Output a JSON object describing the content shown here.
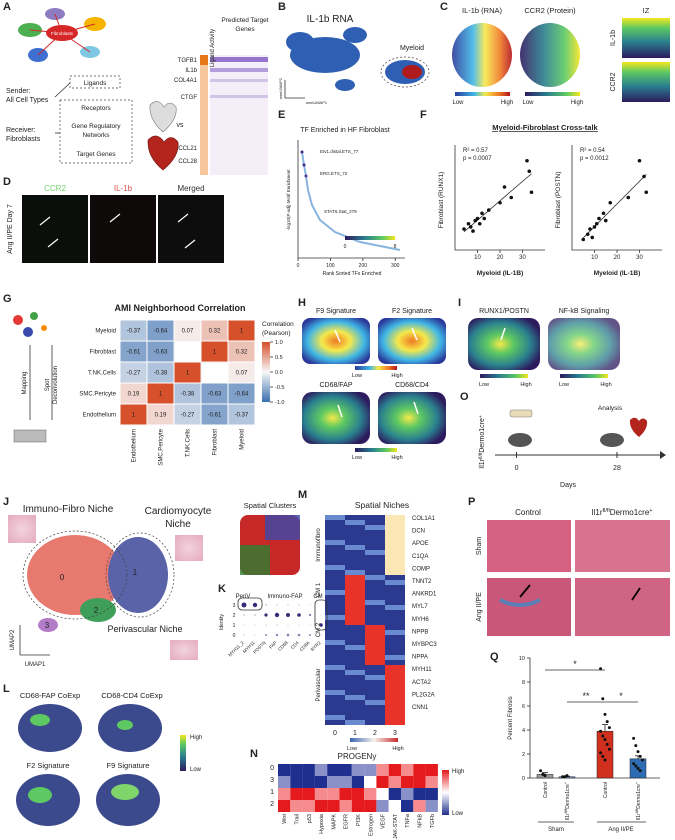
{
  "panels": {
    "a": {
      "letter": "A",
      "center_label": "Fibroblasts",
      "sender": [
        "Sender:",
        "All Cell Types"
      ],
      "receiver": [
        "Receiver:",
        "Fibroblasts"
      ],
      "flow": [
        "Ligands",
        "Receptors",
        "Gene Regulatory",
        "Networks",
        "Target Genes"
      ],
      "vs": "vs",
      "ligand_activity": "Ligand Activity",
      "predicted_target_genes": [
        "Predicted Target",
        "Genes"
      ],
      "genes": [
        "TGFB1",
        "IL1b",
        "COL4A1",
        "CTGF",
        "CCL21",
        "CCL28"
      ]
    },
    "b": {
      "letter": "B",
      "title": "IL-1b RNA",
      "myeloid": "Myeloid",
      "x_label": "wnnUMAP1",
      "y_label": "wnnUMAP2"
    },
    "c": {
      "letter": "C",
      "titles": [
        "IL-1b (RNA)",
        "CCR2 (Protein)",
        "IZ"
      ],
      "row_labels": [
        "IL-1b",
        "CCR2"
      ],
      "scale": [
        "Low",
        "High",
        "Low",
        "High"
      ]
    },
    "d": {
      "letter": "D",
      "titles": [
        "CCR2",
        "IL-1b",
        "Merged"
      ],
      "row_label": "Ang II/PE Day 7"
    },
    "e": {
      "letter": "E",
      "title": "TF Enriched in HF Fibroblast",
      "y_label": "-log10(P-adj) Motif Enrichment",
      "x_label": "Rank Sorted TFs Enriched",
      "annotations": [
        "Etv1.distal.ETS_77",
        "ERG.ETS_72",
        "STAT6.Stat_279"
      ],
      "xlim": [
        0,
        330
      ],
      "xticks": [
        0,
        100,
        200,
        300
      ],
      "colorbar_ticks": [
        0,
        8
      ]
    },
    "f": {
      "letter": "F",
      "title": "Myeloid-Fibroblast Cross-talk",
      "plots": [
        {
          "stats": [
            "R² = 0.57",
            "p = 0.0007"
          ],
          "y_label": "Fibroblast (RUNX1)",
          "x_label": "Myeloid (IL-1B)",
          "xlim": [
            0,
            40
          ],
          "xticks": [
            10,
            20,
            30
          ],
          "ylim": [
            0,
            1
          ],
          "x": [
            4,
            6,
            7,
            8,
            9,
            10,
            11,
            12,
            13,
            15,
            20,
            22,
            25,
            32,
            33,
            34
          ],
          "y": [
            0.2,
            0.25,
            0.22,
            0.18,
            0.28,
            0.3,
            0.25,
            0.35,
            0.3,
            0.38,
            0.45,
            0.6,
            0.5,
            0.85,
            0.75,
            0.55
          ]
        },
        {
          "stats": [
            "R² = 0.54",
            "p = 0.0012"
          ],
          "y_label": "Fibroblast (POSTN)",
          "x_label": "Myeloid (IL-1B)",
          "xlim": [
            0,
            40
          ],
          "xticks": [
            10,
            20,
            30
          ],
          "ylim": [
            0,
            1
          ],
          "x": [
            5,
            7,
            8,
            9,
            10,
            11,
            12,
            14,
            15,
            17,
            25,
            30,
            32,
            33
          ],
          "y": [
            0.1,
            0.15,
            0.2,
            0.12,
            0.22,
            0.25,
            0.3,
            0.35,
            0.28,
            0.45,
            0.5,
            0.85,
            0.7,
            0.55
          ]
        }
      ]
    },
    "g": {
      "letter": "G",
      "title": "AMI Neighborhood Correlation",
      "rows": [
        "Myeloid",
        "Fibroblast",
        "T.NK.Cells",
        "SMC.Pericyte",
        "Endothelium"
      ],
      "columns": [
        "Endothelium",
        "SMC.Pericyte",
        "T.NK.Cells",
        "Fibroblast",
        "Myeloid"
      ],
      "values": [
        [
          -0.37,
          -0.64,
          0.07,
          0.32,
          1
        ],
        [
          -0.61,
          -0.63,
          null,
          1,
          0.32
        ],
        [
          -0.27,
          -0.38,
          1,
          null,
          0.07
        ],
        [
          0.19,
          1,
          -0.38,
          -0.63,
          -0.64
        ],
        [
          1,
          0.19,
          -0.27,
          -0.61,
          -0.37
        ]
      ],
      "colorbar_title": [
        "Correlation",
        "(Pearson)"
      ],
      "colorbar_ticks": [
        {
          "value": 1,
          "label": "1.0"
        },
        {
          "value": 0.5,
          "label": "0.5"
        },
        {
          "value": 0,
          "label": "0.0"
        },
        {
          "value": -0.5,
          "label": "-0.5"
        },
        {
          "value": -1,
          "label": "-1.0"
        }
      ],
      "side_labels": [
        "Mapping",
        "Spot",
        "Deconvolution"
      ]
    },
    "h": {
      "letter": "H",
      "titles": [
        "F9 Signature",
        "F2 Signature",
        "CD68/FAP",
        "CD68/CD4"
      ],
      "scale": [
        "Low",
        "High",
        "Low",
        "High"
      ]
    },
    "i": {
      "letter": "I",
      "titles": [
        "RUNX1/POSTN",
        "NF-kB Signaling"
      ],
      "scale": [
        "Low",
        "High",
        "Low",
        "High"
      ]
    },
    "o": {
      "letter": "O",
      "genotype": [
        "Il1r",
        "fl/fl",
        "Dermo1cre",
        "+"
      ],
      "analysis": "Analysis",
      "xlim": [
        -6,
        40
      ],
      "xticks": [
        0,
        28
      ],
      "x_label": "Days"
    },
    "j": {
      "letter": "J",
      "niches": [
        "Immuno-Fibro Niche",
        "Cardiomyocyte",
        "Niche",
        "Perivascular Niche"
      ],
      "clusters": [
        "0",
        "1",
        "2",
        "3"
      ],
      "x_label": "UMAP1",
      "y_label": "UMAP2",
      "spatial_title": "Spatial Clusters"
    },
    "k": {
      "letter": "K",
      "groups": [
        "PeriV",
        "Immuno-FAP",
        "CM"
      ],
      "y_label": "Identity",
      "identities": [
        "3",
        "2",
        "1",
        "0"
      ],
      "genes": [
        "MYH11_2",
        "MYH11",
        "POSTN",
        "FAP",
        "CD68",
        "CD4",
        "CD8A",
        "RYR2"
      ]
    },
    "m": {
      "letter": "M",
      "title": "Spatial Niches",
      "row_groups": [
        "Immunofibro",
        "CM 1",
        "CM 2",
        "Perivascular"
      ],
      "columns": [
        "0",
        "1",
        "2",
        "3"
      ],
      "genes": [
        "COL1A1",
        "DCN",
        "APOE",
        "C1QA",
        "COMP",
        "TNNT2",
        "ANKRD1",
        "MYL7",
        "MYH6",
        "NPPB",
        "MYBPC3",
        "NPPA",
        "MYH11",
        "ACTA2",
        "PL2G2A",
        "CNN1"
      ],
      "scale": [
        "Low",
        "High"
      ]
    },
    "p": {
      "letter": "P",
      "control": "Control",
      "genotype": [
        "Il1r",
        "fl/fl",
        "Dermo1cre",
        "+"
      ],
      "rows": [
        "Sham",
        "Ang II/PE"
      ]
    },
    "q": {
      "letter": "Q",
      "y_label": "Percent Fibrosis",
      "ylim": [
        0,
        10
      ],
      "yticks": [
        0,
        2,
        4,
        6,
        8,
        10
      ],
      "bars": [
        {
          "label": [
            "Control"
          ],
          "color": "#9a9a9a",
          "value": 0.3,
          "error": 0.15,
          "points": [
            0.6,
            0.3,
            0.2
          ]
        },
        {
          "label": [
            "Il1r",
            "fl/fl",
            "Dermo1cre",
            "+"
          ],
          "color": "#6a8fc7",
          "value": 0.1,
          "error": 0.05,
          "points": [
            0.1,
            0.1,
            0.2
          ]
        },
        {
          "label": [
            "Control"
          ],
          "color": "#d2301f",
          "value": 3.9,
          "error": 0.55,
          "points": [
            9.1,
            6.6,
            5.3,
            4.7,
            4.2,
            3.9,
            3.5,
            3.2,
            2.8,
            2.4,
            2.1,
            1.8,
            1.5
          ]
        },
        {
          "label": [
            "Il1r",
            "fl/fl",
            "Dermo1cre",
            "+"
          ],
          "color": "#2e6db4",
          "value": 1.6,
          "error": 0.25,
          "points": [
            3.3,
            2.7,
            2.2,
            1.8,
            1.5,
            1.2,
            1.0,
            0.8,
            0.6
          ]
        }
      ],
      "conditions": [
        "Sham",
        "Ang II/PE"
      ],
      "significance": [
        "*",
        "**",
        "*"
      ]
    },
    "l": {
      "letter": "L",
      "titles": [
        "CD68-FAP CoExp",
        "CD68-CD4 CoExp",
        "F2 Signature",
        "F9 Signature"
      ],
      "scale": [
        "High",
        "Low"
      ]
    },
    "n": {
      "letter": "N",
      "title": "PROGENy",
      "rows": [
        "0",
        "3",
        "1",
        "2"
      ],
      "pathways": [
        "Wnt",
        "Trail",
        "p53",
        "Hypoxia",
        "MAPK",
        "EGFR",
        "PI3K",
        "Estrogen",
        "VEGF",
        "JAK-STAT",
        "TNFa",
        "NFkB",
        "TGFb"
      ],
      "scale": [
        "High",
        "Low"
      ]
    }
  }
}
